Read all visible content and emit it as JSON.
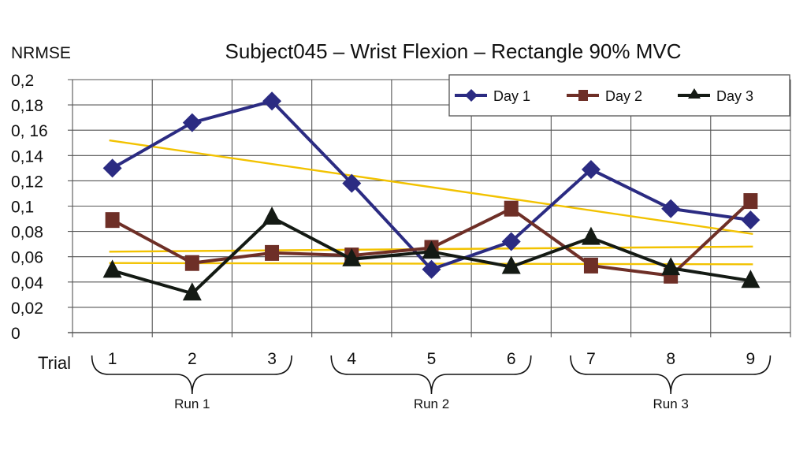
{
  "chart_data": {
    "type": "line",
    "title": "Subject045 – Wrist Flexion – Rectangle 90% MVC",
    "ylabel": "NRMSE",
    "xlabel": "Trial",
    "ylim": [
      0,
      0.2
    ],
    "yticks": [
      0,
      0.02,
      0.04,
      0.06,
      0.08,
      0.1,
      0.12,
      0.14,
      0.16,
      0.18,
      0.2
    ],
    "ytick_labels": [
      "0",
      "0,02",
      "0,04",
      "0,06",
      "0,08",
      "0,1",
      "0,12",
      "0,14",
      "0, 16",
      "0,18",
      "0,2"
    ],
    "categories": [
      "1",
      "2",
      "3",
      "4",
      "5",
      "6",
      "7",
      "8",
      "9"
    ],
    "grid": true,
    "legend_position": "top-right",
    "series": [
      {
        "name": "Day 1",
        "color": "#2b2b82",
        "marker": "diamond",
        "values": [
          0.13,
          0.166,
          0.183,
          0.118,
          0.05,
          0.072,
          0.129,
          0.098,
          0.089
        ],
        "trend": [
          0.152,
          0.078
        ]
      },
      {
        "name": "Day 2",
        "color": "#6e2f27",
        "marker": "square",
        "values": [
          0.089,
          0.055,
          0.063,
          0.061,
          0.067,
          0.098,
          0.053,
          0.045,
          0.104
        ],
        "trend": [
          0.064,
          0.068
        ]
      },
      {
        "name": "Day 3",
        "color": "#141a14",
        "marker": "triangle",
        "values": [
          0.049,
          0.031,
          0.091,
          0.058,
          0.064,
          0.052,
          0.075,
          0.051,
          0.041
        ],
        "trend": [
          0.055,
          0.054
        ]
      }
    ],
    "trend_color": "#f2c200",
    "groups": [
      {
        "label": "Run 1",
        "trials": [
          "1",
          "2",
          "3"
        ]
      },
      {
        "label": "Run 2",
        "trials": [
          "4",
          "5",
          "6"
        ]
      },
      {
        "label": "Run 3",
        "trials": [
          "7",
          "8",
          "9"
        ]
      }
    ]
  }
}
